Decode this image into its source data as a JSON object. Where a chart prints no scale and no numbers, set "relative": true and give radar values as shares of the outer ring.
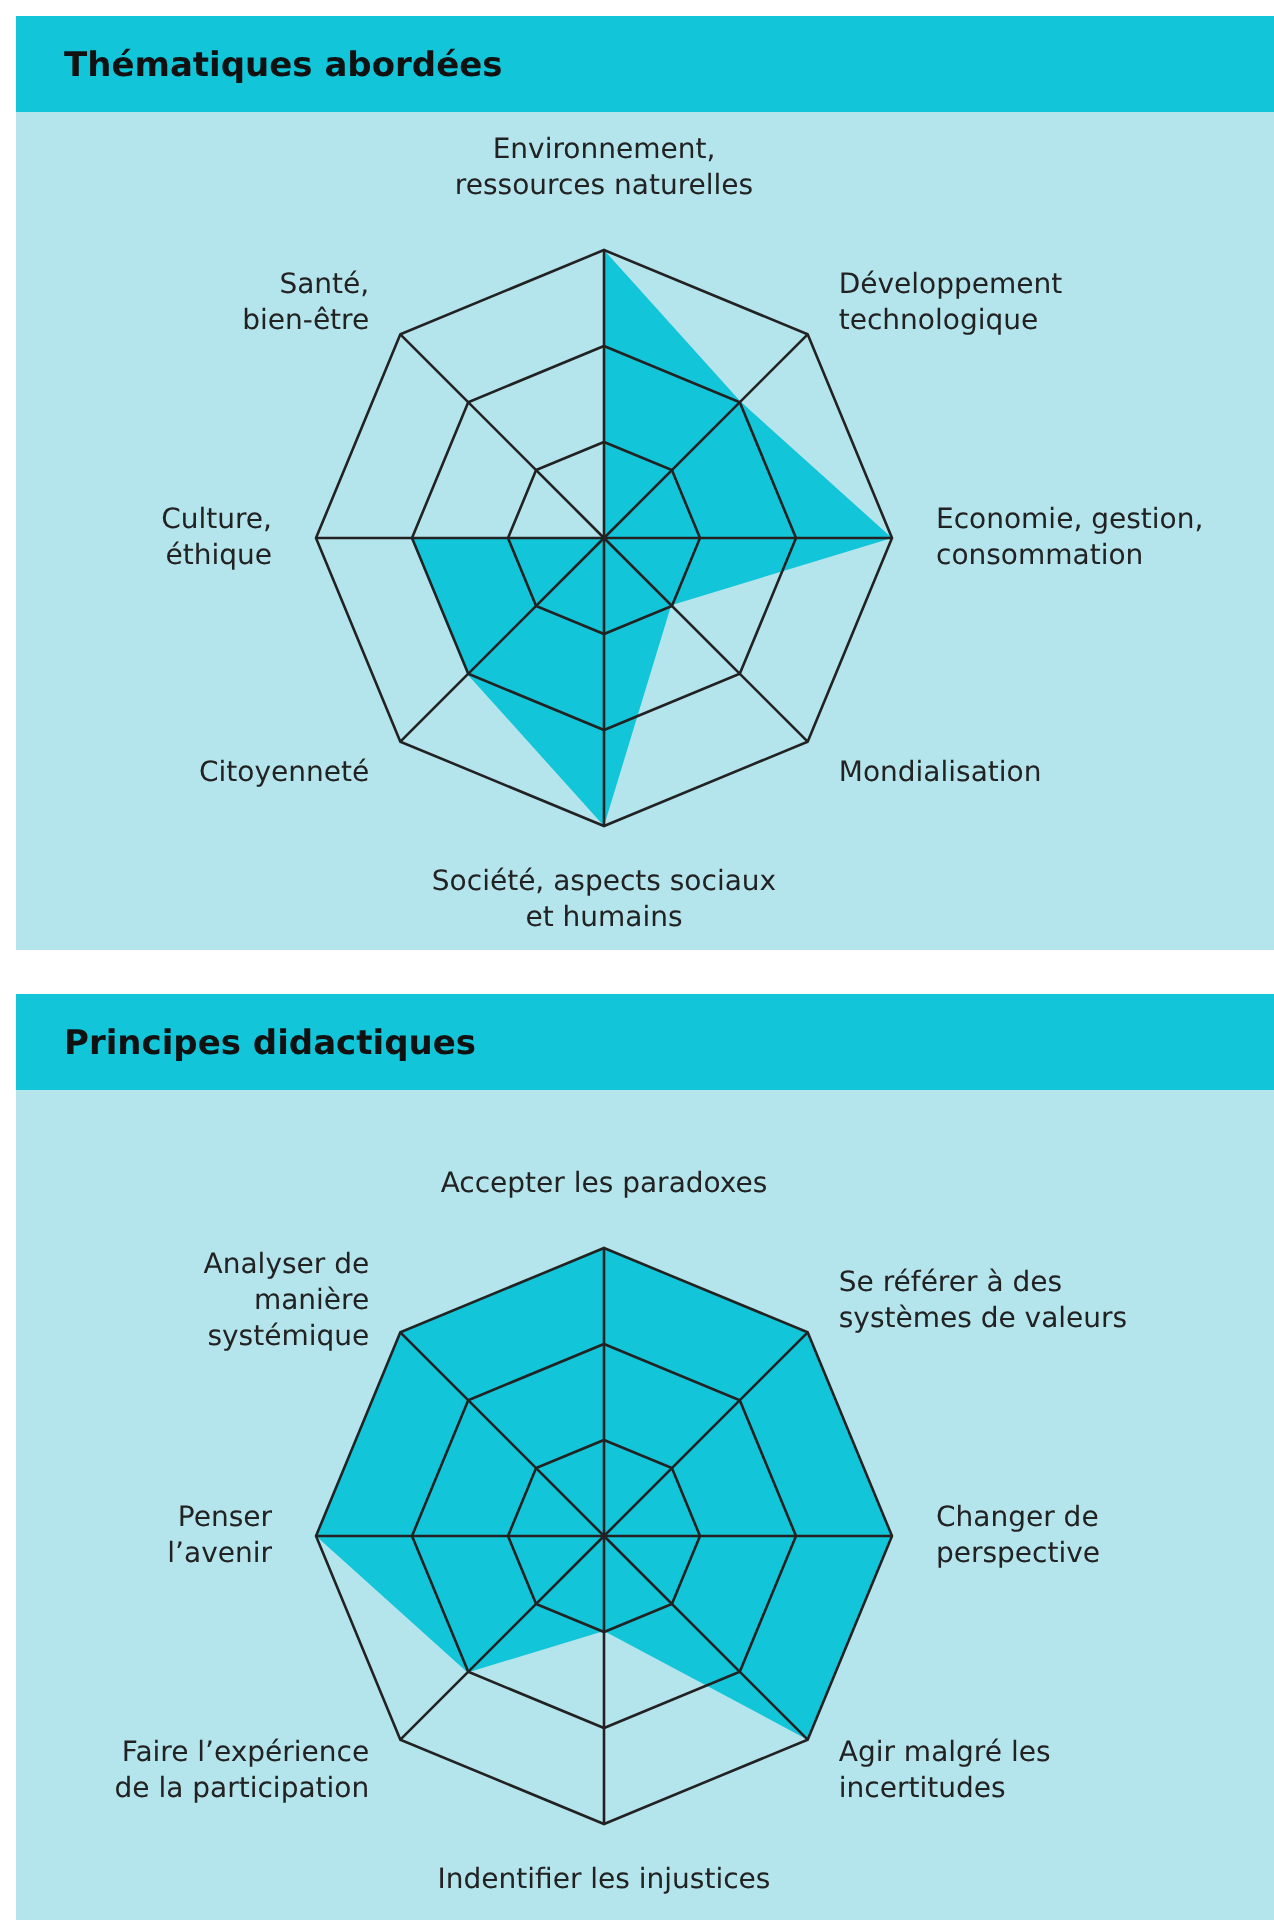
{
  "chart_data": [
    {
      "type": "radar",
      "title": "Thématiques abordées",
      "relative": true,
      "grid": true,
      "categories": [
        "Environnement,\nressources naturelles",
        "Développement\ntechnologique",
        "Economie, gestion,\nconsommation",
        "Mondialisation",
        "Société, aspects sociaux\net humains",
        "Citoyenneté",
        "Culture,\néthique",
        "Santé,\nbien-être"
      ],
      "series": [
        {
          "color": "#12c5d9",
          "values": [
            1,
            0.67,
            1,
            0.33,
            1,
            0.67,
            0.67,
            0
          ]
        }
      ]
    },
    {
      "type": "radar",
      "title": "Principes didactiques",
      "relative": true,
      "grid": true,
      "categories": [
        "Accepter les paradoxes",
        "Se référer à des\nsystèmes de valeurs",
        "Changer de\nperspective",
        "Agir malgré les\nincertitudes",
        "Indentifier les injustices",
        "Faire l’expérience\nde la participation",
        "Penser\nl’avenir",
        "Analyser de\nmanière\nsystémique"
      ],
      "series": [
        {
          "color": "#12c5d9",
          "values": [
            1,
            1,
            1,
            1,
            0.33,
            0.67,
            1,
            1
          ]
        }
      ]
    }
  ]
}
